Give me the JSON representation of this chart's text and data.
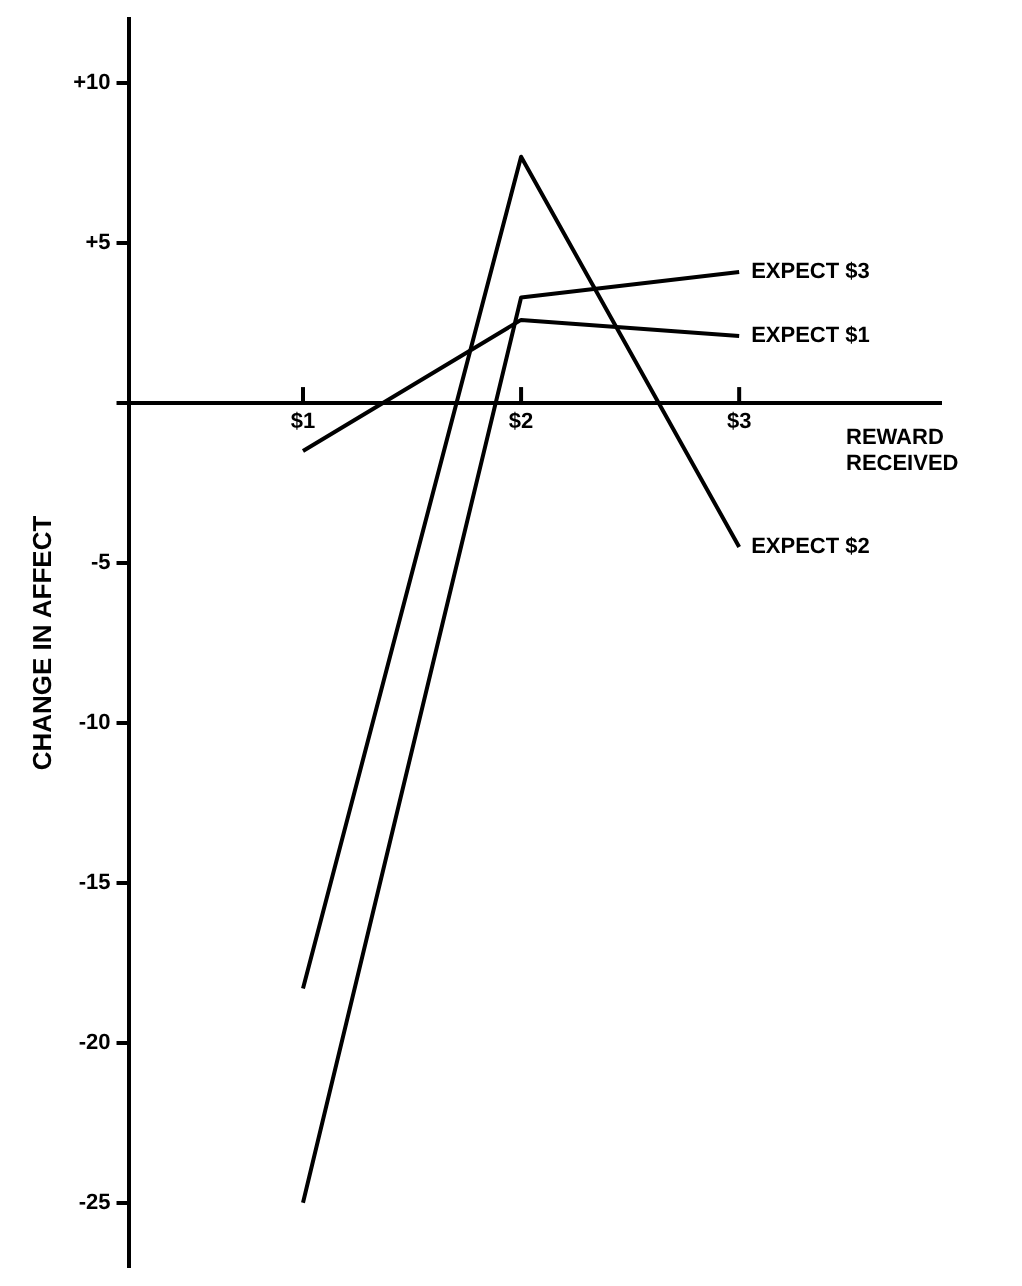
{
  "chart_data": {
    "type": "line",
    "xlabel": "REWARD RECEIVED",
    "ylabel": "CHANGE IN AFFECT",
    "categories": [
      "$1",
      "$2",
      "$3"
    ],
    "series": [
      {
        "name": "EXPECT $1",
        "color": "#000000",
        "values": [
          -1.5,
          2.6,
          2.1
        ]
      },
      {
        "name": "EXPECT $2",
        "color": "#000000",
        "values": [
          -18.3,
          7.7,
          -4.5
        ]
      },
      {
        "name": "EXPECT $3",
        "color": "#000000",
        "values": [
          -25,
          3.3,
          4.1
        ]
      }
    ],
    "ylim": [
      -27,
      12
    ],
    "yticks": [
      {
        "value": 10,
        "label": "+10"
      },
      {
        "value": 5,
        "label": "+5"
      },
      {
        "value": 0,
        "label": null
      },
      -5,
      -10,
      -15,
      -20,
      -25
    ],
    "grid": false,
    "legend": false,
    "marker": "none",
    "line_style": "solid"
  }
}
